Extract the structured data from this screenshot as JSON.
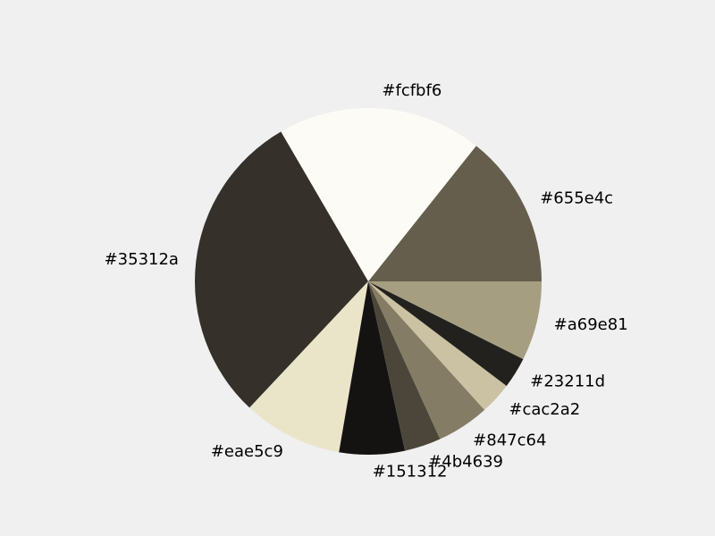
{
  "chart_data": {
    "type": "pie",
    "start_angle_deg": 0,
    "direction": "counterclockwise",
    "slices": [
      {
        "label": "#655e4c",
        "value": 14.3,
        "color": "#655e4c"
      },
      {
        "label": "#fcfbf6",
        "value": 19.1,
        "color": "#fcfbf6"
      },
      {
        "label": "#35312a",
        "value": 29.6,
        "color": "#35312a"
      },
      {
        "label": "#eae5c9",
        "value": 9.3,
        "color": "#eae5c9"
      },
      {
        "label": "#151312",
        "value": 6.1,
        "color": "#151312"
      },
      {
        "label": "#4b4639",
        "value": 3.4,
        "color": "#4b4639"
      },
      {
        "label": "#847c64",
        "value": 4.9,
        "color": "#847c64"
      },
      {
        "label": "#cac2a2",
        "value": 3.0,
        "color": "#cac2a2"
      },
      {
        "label": "#23211d",
        "value": 2.9,
        "color": "#23211d"
      },
      {
        "label": "#a69e81",
        "value": 7.4,
        "color": "#a69e81"
      }
    ]
  }
}
